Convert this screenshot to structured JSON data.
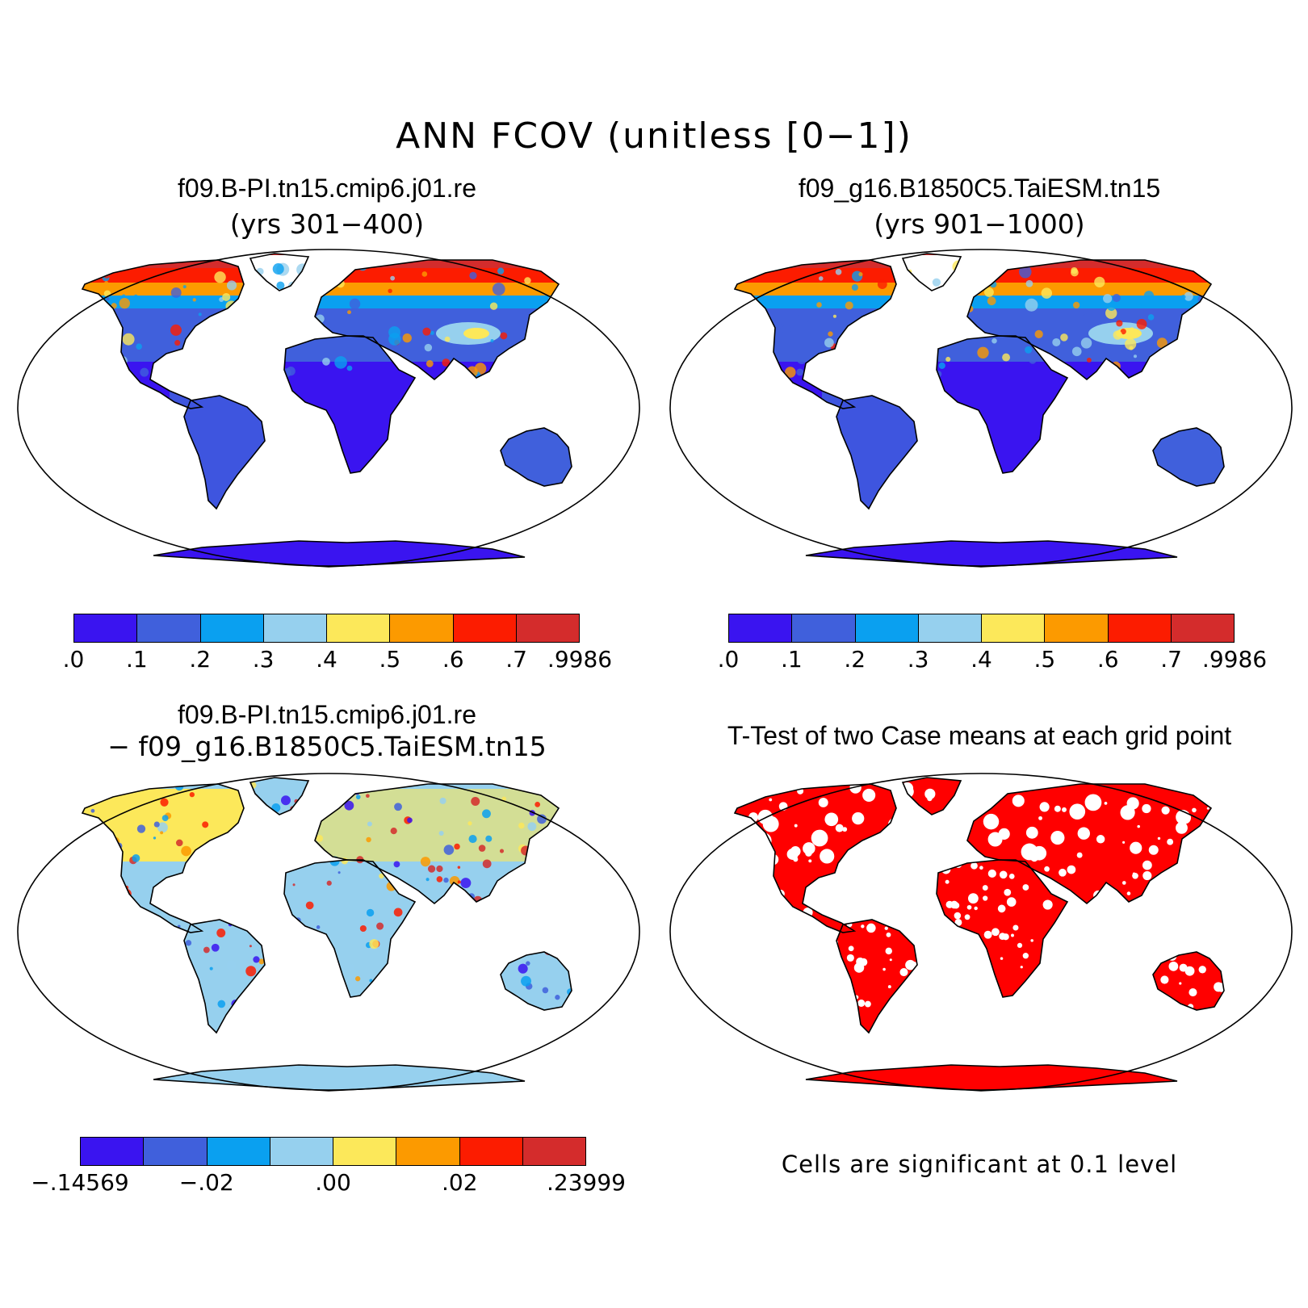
{
  "title": "ANN FCOV (unitless [0−1])",
  "panels": [
    {
      "title": "f09.B-PI.tn15.cmip6.j01.re",
      "subtitle": "(yrs 301−400)",
      "field": "field1"
    },
    {
      "title": "f09_g16.B1850C5.TaiESM.tn15",
      "subtitle": "(yrs 901−1000)",
      "field": "field2"
    },
    {
      "title": "f09.B-PI.tn15.cmip6.j01.re",
      "subtitle": "− f09_g16.B1850C5.TaiESM.tn15",
      "field": "diff"
    },
    {
      "title": "T-Test of two Case means at each grid point",
      "subtitle": "",
      "field": "ttest"
    }
  ],
  "colorbar_case": {
    "colors": [
      "#3a14f0",
      "#4060dc",
      "#0aa0f0",
      "#96d0ee",
      "#fce85a",
      "#fc9a00",
      "#fc1c00",
      "#d42c2c"
    ],
    "labels": [
      ".0",
      ".1",
      ".2",
      ".3",
      ".4",
      ".5",
      ".6",
      ".7",
      ".9986"
    ]
  },
  "colorbar_diff": {
    "colors": [
      "#3a14f0",
      "#4060dc",
      "#0aa0f0",
      "#96d0ee",
      "#fce85a",
      "#fc9a00",
      "#fc1c00",
      "#d42c2c"
    ],
    "labels": [
      "−.14569",
      "−.02",
      ".00",
      ".02",
      ".23999"
    ],
    "label_boundaries": [
      0,
      2,
      4,
      6,
      8
    ]
  },
  "ttest_note": "Cells are significant at 0.1 level",
  "significance_color": "#ff0000"
}
